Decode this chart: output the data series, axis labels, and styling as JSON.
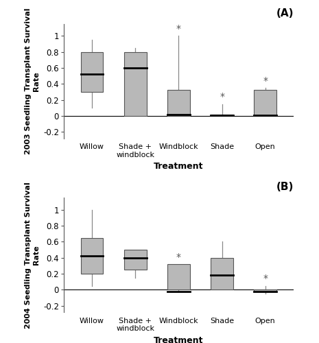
{
  "panel_A": {
    "label": "(A)",
    "ylabel": "2003 Seedling Transplant Survival\nRate",
    "xlabel": "Treatment",
    "ylim": [
      -0.28,
      1.15
    ],
    "yticks": [
      -0.2,
      0,
      0.2,
      0.4,
      0.6,
      0.8,
      1.0
    ],
    "ytick_labels": [
      "-0.2",
      "0",
      "0.2",
      "0.4",
      "0.6",
      "0.8",
      "1"
    ],
    "categories": [
      "Willow",
      "Shade +\nwindblock",
      "Windblock",
      "Shade",
      "Open"
    ],
    "asterisk": [
      false,
      false,
      true,
      true,
      true
    ],
    "boxes": [
      {
        "whisker_low": 0.1,
        "q1": 0.3,
        "median": 0.52,
        "q3": 0.8,
        "whisker_high": 0.95
      },
      {
        "whisker_low": 0.0,
        "q1": 0.0,
        "median": 0.6,
        "q3": 0.8,
        "whisker_high": 0.85
      },
      {
        "whisker_low": 0.0,
        "q1": 0.0,
        "median": 0.02,
        "q3": 0.33,
        "whisker_high": 1.0
      },
      {
        "whisker_low": 0.0,
        "q1": 0.0,
        "median": 0.01,
        "q3": 0.02,
        "whisker_high": 0.15
      },
      {
        "whisker_low": 0.0,
        "q1": 0.0,
        "median": 0.01,
        "q3": 0.33,
        "whisker_high": 0.35
      }
    ]
  },
  "panel_B": {
    "label": "(B)",
    "ylabel": "2004 Seedling Transplant Survival\nRate",
    "xlabel": "Treatment",
    "ylim": [
      -0.28,
      1.15
    ],
    "yticks": [
      -0.2,
      0,
      0.2,
      0.4,
      0.6,
      0.8,
      1.0
    ],
    "ytick_labels": [
      "-0.2",
      "0",
      "0.2",
      "0.4",
      "0.6",
      "0.8",
      "1"
    ],
    "categories": [
      "Willow",
      "Shade +\nwindblock",
      "Windblock",
      "Shade",
      "Open"
    ],
    "asterisk": [
      false,
      false,
      true,
      false,
      true
    ],
    "boxes": [
      {
        "whisker_low": 0.05,
        "q1": 0.2,
        "median": 0.42,
        "q3": 0.65,
        "whisker_high": 1.0
      },
      {
        "whisker_low": 0.15,
        "q1": 0.25,
        "median": 0.4,
        "q3": 0.5,
        "whisker_high": 0.5
      },
      {
        "whisker_low": -0.02,
        "q1": 0.0,
        "median": -0.02,
        "q3": 0.32,
        "whisker_high": 0.32
      },
      {
        "whisker_low": 0.0,
        "q1": 0.0,
        "median": 0.18,
        "q3": 0.4,
        "whisker_high": 0.6
      },
      {
        "whisker_low": -0.05,
        "q1": -0.02,
        "median": -0.02,
        "q3": 0.0,
        "whisker_high": 0.05
      }
    ]
  },
  "box_color": "#b8b8b8",
  "box_edgecolor": "#555555",
  "median_color": "#000000",
  "whisker_color": "#888888",
  "background_color": "#ffffff",
  "figsize": [
    4.65,
    5.0
  ],
  "dpi": 100
}
